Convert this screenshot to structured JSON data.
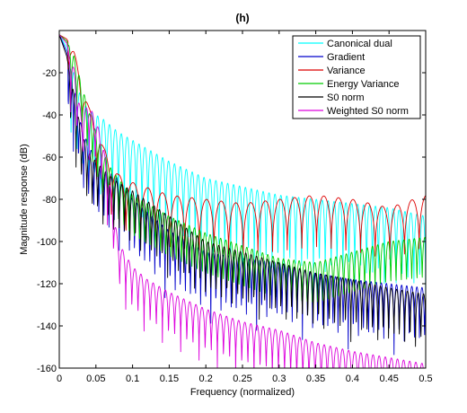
{
  "chart_data": {
    "type": "line",
    "title": "(h)",
    "xlabel": "Frequency (normalized)",
    "ylabel": "Magnitude response (dB)",
    "xlim": [
      0,
      0.5
    ],
    "ylim": [
      -160,
      0
    ],
    "xticks": [
      0,
      0.05,
      0.1,
      0.15,
      0.2,
      0.25,
      0.3,
      0.35,
      0.4,
      0.45,
      0.5
    ],
    "xtick_labels": [
      "0",
      "0.05",
      "0.1",
      "0.15",
      "0.2",
      "0.25",
      "0.3",
      "0.35",
      "0.4",
      "0.45",
      "0.5"
    ],
    "yticks": [
      -160,
      -140,
      -120,
      -100,
      -80,
      -60,
      -40,
      -20
    ],
    "ytick_labels": [
      "-160",
      "-140",
      "-120",
      "-100",
      "-80",
      "-60",
      "-40",
      "-20"
    ],
    "grid": false,
    "legend_position": "top-right",
    "series": [
      {
        "name": "Canonical dual",
        "color": "#00ffff",
        "x": [
          0,
          0.01,
          0.02,
          0.03,
          0.04,
          0.05,
          0.06,
          0.07,
          0.08,
          0.1,
          0.12,
          0.15,
          0.2,
          0.25,
          0.3,
          0.35,
          0.4,
          0.45,
          0.5
        ],
        "values": [
          -2,
          -8,
          -20,
          -32,
          -38,
          -40,
          -42,
          -45,
          -48,
          -52,
          -56,
          -62,
          -70,
          -74,
          -78,
          -80,
          -82,
          -84,
          -88
        ],
        "lobe_depth": 45,
        "lobe_count": 62
      },
      {
        "name": "Gradient",
        "color": "#0000cc",
        "x": [
          0,
          0.01,
          0.02,
          0.03,
          0.04,
          0.05,
          0.06,
          0.08,
          0.1,
          0.15,
          0.2,
          0.25,
          0.3,
          0.35,
          0.4,
          0.45,
          0.5
        ],
        "values": [
          -2,
          -10,
          -25,
          -45,
          -55,
          -60,
          -65,
          -70,
          -80,
          -95,
          -105,
          -108,
          -110,
          -115,
          -118,
          -120,
          -122
        ],
        "lobe_depth": 35,
        "lobe_count": 72
      },
      {
        "name": "Variance",
        "color": "#dd0000",
        "x": [
          0,
          0.01,
          0.02,
          0.03,
          0.04,
          0.05,
          0.06,
          0.07,
          0.08,
          0.1,
          0.15,
          0.2,
          0.25,
          0.3,
          0.35,
          0.4,
          0.45,
          0.5
        ],
        "values": [
          -2,
          -4,
          -10,
          -22,
          -36,
          -45,
          -55,
          -62,
          -68,
          -72,
          -78,
          -80,
          -82,
          -80,
          -78,
          -80,
          -84,
          -78
        ],
        "lobe_depth": 28,
        "lobe_count": 25
      },
      {
        "name": "Energy Variance",
        "color": "#00cc00",
        "x": [
          0,
          0.01,
          0.02,
          0.03,
          0.04,
          0.05,
          0.06,
          0.07,
          0.08,
          0.1,
          0.15,
          0.2,
          0.25,
          0.3,
          0.35,
          0.4,
          0.45,
          0.5
        ],
        "values": [
          -2,
          -5,
          -12,
          -25,
          -38,
          -48,
          -58,
          -65,
          -70,
          -78,
          -88,
          -96,
          -102,
          -108,
          -110,
          -105,
          -100,
          -98
        ],
        "lobe_depth": 30,
        "lobe_count": 70
      },
      {
        "name": "S0 norm",
        "color": "#000000",
        "x": [
          0,
          0.01,
          0.02,
          0.03,
          0.04,
          0.05,
          0.06,
          0.08,
          0.1,
          0.15,
          0.2,
          0.25,
          0.3,
          0.35,
          0.4,
          0.45,
          0.5
        ],
        "values": [
          -2,
          -12,
          -30,
          -48,
          -58,
          -62,
          -66,
          -72,
          -76,
          -88,
          -100,
          -105,
          -110,
          -115,
          -118,
          -122,
          -125
        ],
        "lobe_depth": 32,
        "lobe_count": 68
      },
      {
        "name": "Weighted S0 norm",
        "color": "#dd00dd",
        "x": [
          0,
          0.01,
          0.02,
          0.03,
          0.04,
          0.05,
          0.06,
          0.07,
          0.08,
          0.1,
          0.12,
          0.15,
          0.2,
          0.25,
          0.3,
          0.35,
          0.4,
          0.45,
          0.5
        ],
        "values": [
          -2,
          -6,
          -18,
          -40,
          -35,
          -42,
          -55,
          -75,
          -100,
          -112,
          -118,
          -124,
          -132,
          -138,
          -142,
          -148,
          -152,
          -155,
          -158
        ],
        "lobe_depth": 28,
        "lobe_count": 60
      }
    ]
  }
}
